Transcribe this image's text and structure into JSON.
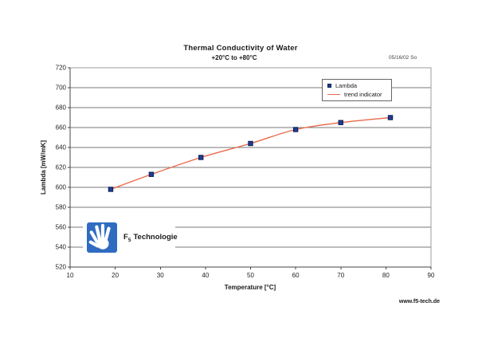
{
  "page": {
    "date_stamp": "05/16/02 So",
    "website": "www.f5-tech.de"
  },
  "logo": {
    "f": "F",
    "sub": "5",
    "rest": "Technologie"
  },
  "colors": {
    "logo_blue": "#2f6cc1",
    "grid": "#787878",
    "axis": "#444444",
    "plot_border": "#9e9e9e"
  },
  "chart_data": {
    "type": "scatter",
    "title": "Thermal Conductivity of Water",
    "subtitle": "+20°C to +80°C",
    "xlabel": "Temperature [°C]",
    "ylabel": "Lambda [mW/mK]",
    "xlim": [
      10,
      90
    ],
    "xstep": 10,
    "ylim": [
      520,
      720
    ],
    "ystep": 20,
    "grid": "horizontal-only",
    "legend_position": "inside-top-right",
    "series": [
      {
        "name": "Lambda",
        "type": "scatter",
        "marker": "square",
        "color": "#1f3d96",
        "marker_edge": "#0d1f52",
        "x": [
          19,
          28,
          39,
          50,
          60,
          70,
          81
        ],
        "y": [
          598,
          613,
          630,
          644,
          658,
          665,
          670
        ]
      },
      {
        "name": "trend indicator",
        "type": "smooth-line",
        "color": "#e96a4b",
        "x": [
          19,
          28,
          39,
          50,
          60,
          70,
          81
        ],
        "y": [
          598,
          613,
          630,
          644,
          658,
          665,
          670
        ]
      }
    ]
  }
}
